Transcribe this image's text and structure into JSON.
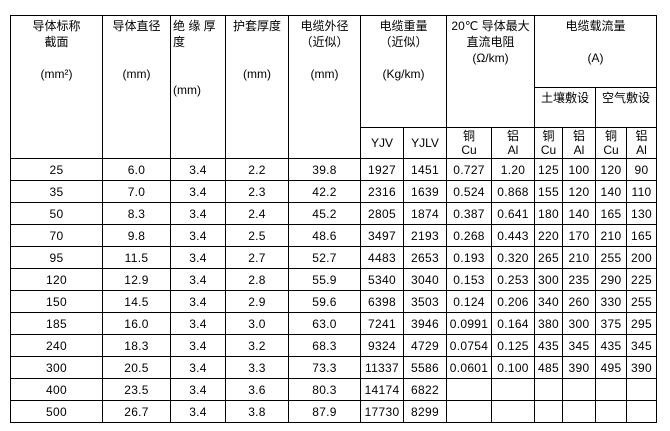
{
  "headers": {
    "section": "导体标称\n截面\n\n(mm²)",
    "diameter": "导体直径\n\n\n(mm)",
    "insulation": "绝 缘 厚\n度\n\n\n(mm)",
    "sheath": "护套厚度\n\n\n(mm)",
    "outer_dia": "电缆外径\n（近似）\n\n(mm)",
    "weight": "电缆重量\n（近似）\n\n(Kg/km)",
    "resistance": "20℃ 导体最大\n直流电阻\n(Ω/km)",
    "ampacity": "电缆载流量\n\n(A)",
    "soil": "土壤敷设",
    "air": "空气敷设",
    "yjv": "YJV",
    "yjlv": "YJLV",
    "cu": "铜\nCu",
    "al": "铝\nAl"
  },
  "rows": [
    [
      "25",
      "6.0",
      "3.4",
      "2.2",
      "39.8",
      "1927",
      "1451",
      "0.727",
      "1.20",
      "125",
      "100",
      "120",
      "90"
    ],
    [
      "35",
      "7.0",
      "3.4",
      "2.3",
      "42.2",
      "2316",
      "1639",
      "0.524",
      "0.868",
      "155",
      "120",
      "140",
      "110"
    ],
    [
      "50",
      "8.3",
      "3.4",
      "2.4",
      "45.2",
      "2805",
      "1874",
      "0.387",
      "0.641",
      "180",
      "140",
      "165",
      "130"
    ],
    [
      "70",
      "9.8",
      "3.4",
      "2.5",
      "48.6",
      "3497",
      "2193",
      "0.268",
      "0.443",
      "220",
      "170",
      "210",
      "165"
    ],
    [
      "95",
      "11.5",
      "3.4",
      "2.7",
      "52.7",
      "4483",
      "2653",
      "0.193",
      "0.320",
      "265",
      "210",
      "255",
      "200"
    ],
    [
      "120",
      "12.9",
      "3.4",
      "2.8",
      "55.9",
      "5340",
      "3040",
      "0.153",
      "0.253",
      "300",
      "235",
      "290",
      "225"
    ],
    [
      "150",
      "14.5",
      "3.4",
      "2.9",
      "59.6",
      "6398",
      "3503",
      "0.124",
      "0.206",
      "340",
      "260",
      "330",
      "255"
    ],
    [
      "185",
      "16.0",
      "3.4",
      "3.0",
      "63.0",
      "7241",
      "3946",
      "0.0991",
      "0.164",
      "380",
      "300",
      "375",
      "295"
    ],
    [
      "240",
      "18.3",
      "3.4",
      "3.2",
      "68.3",
      "9324",
      "4729",
      "0.0754",
      "0.125",
      "435",
      "345",
      "435",
      "345"
    ],
    [
      "300",
      "20.5",
      "3.4",
      "3.3",
      "73.3",
      "11337",
      "5586",
      "0.0601",
      "0.100",
      "485",
      "390",
      "495",
      "390"
    ],
    [
      "400",
      "23.5",
      "3.4",
      "3.6",
      "80.3",
      "14174",
      "6822",
      "",
      "",
      "",
      "",
      "",
      ""
    ],
    [
      "500",
      "26.7",
      "3.4",
      "3.8",
      "87.9",
      "17730",
      "8299",
      "",
      "",
      "",
      "",
      "",
      ""
    ]
  ]
}
